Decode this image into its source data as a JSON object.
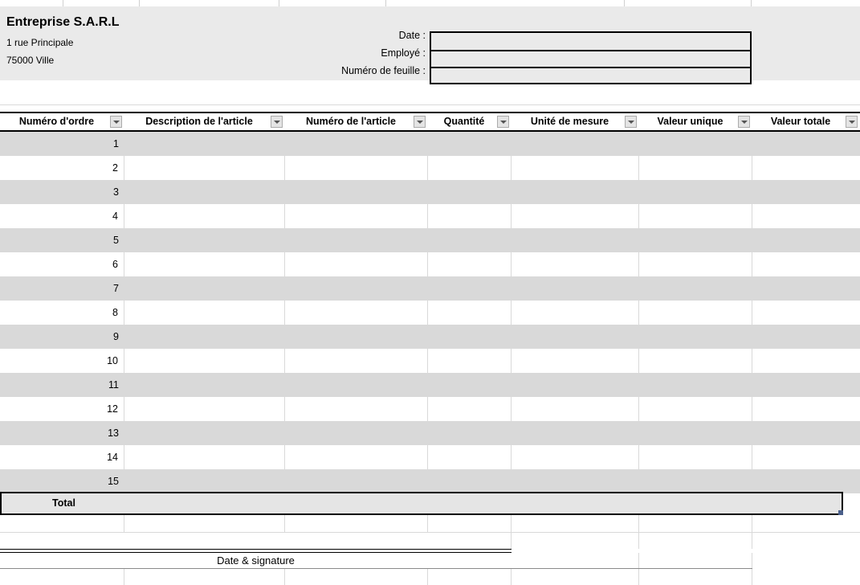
{
  "company": {
    "name": "Entreprise S.A.R.L",
    "address_line1": "1 rue Principale",
    "address_line2": "75000 Ville"
  },
  "form": {
    "fields": [
      {
        "label": "Date :",
        "value": ""
      },
      {
        "label": "Employé :",
        "value": ""
      },
      {
        "label": "Numéro de feuille :",
        "value": ""
      }
    ]
  },
  "table": {
    "columns": [
      "Numéro d'ordre",
      "Description de l'article",
      "Numéro de l'article",
      "Quantité",
      "Unité de mesure",
      "Valeur unique",
      "Valeur totale"
    ],
    "rows": [
      "1",
      "2",
      "3",
      "4",
      "5",
      "6",
      "7",
      "8",
      "9",
      "10",
      "11",
      "12",
      "13",
      "14",
      "15"
    ],
    "total_label": "Total"
  },
  "footer": {
    "signature_label": "Date & signature"
  },
  "colors": {
    "panel_gray": "#eaeaea",
    "stripe_gray": "#d9d9d9",
    "total_gray": "#e5e5e5",
    "border_black": "#000000",
    "fill_handle_blue": "#4a5f8a"
  }
}
